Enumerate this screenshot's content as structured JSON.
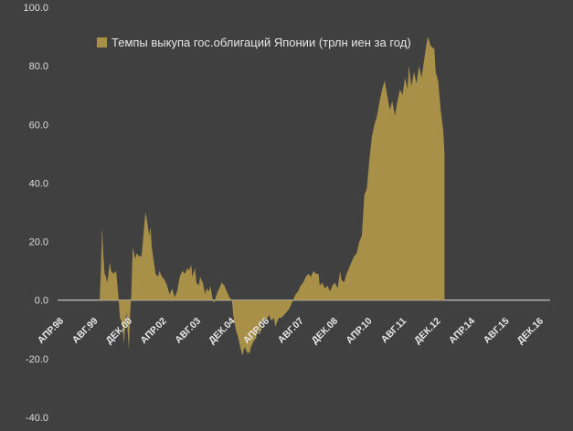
{
  "chart_data": {
    "type": "area",
    "series": [
      {
        "name": "Темпы выкупа гос.облигаций Японии (трлн иен за год)",
        "color": "#a89048"
      }
    ],
    "x_ticks": [
      "АПР.98",
      "АВГ.99",
      "ДЕК.00",
      "АПР.02",
      "АВГ.03",
      "ДЕК.04",
      "АПР.06",
      "АВГ.07",
      "ДЕК.08",
      "АПР.10",
      "АВГ.11",
      "ДЕК.12",
      "АПР.14",
      "АВГ.15",
      "ДЕК.16"
    ],
    "y_ticks": [
      "100.0",
      "80.0",
      "60.0",
      "40.0",
      "20.0",
      "0.0",
      "-20.0",
      "-40.0"
    ],
    "ylim": [
      -40,
      100
    ],
    "xlim": [
      1998.25,
      2017.6
    ],
    "grid": false,
    "legend_position": "top-left",
    "points": [
      [
        1999.8,
        0
      ],
      [
        1999.9,
        0
      ],
      [
        1999.95,
        10
      ],
      [
        2000.0,
        25
      ],
      [
        2000.05,
        15
      ],
      [
        2000.1,
        9
      ],
      [
        2000.15,
        8
      ],
      [
        2000.2,
        6
      ],
      [
        2000.25,
        9
      ],
      [
        2000.3,
        13
      ],
      [
        2000.35,
        10
      ],
      [
        2000.45,
        9
      ],
      [
        2000.55,
        10
      ],
      [
        2000.65,
        0
      ],
      [
        2000.7,
        -6
      ],
      [
        2000.8,
        -8
      ],
      [
        2000.85,
        -15
      ],
      [
        2000.95,
        -4
      ],
      [
        2001.0,
        -10
      ],
      [
        2001.05,
        -17
      ],
      [
        2001.1,
        -5
      ],
      [
        2001.15,
        3
      ],
      [
        2001.2,
        18
      ],
      [
        2001.3,
        14
      ],
      [
        2001.35,
        16
      ],
      [
        2001.45,
        15
      ],
      [
        2001.55,
        15
      ],
      [
        2001.65,
        25
      ],
      [
        2001.7,
        30
      ],
      [
        2001.75,
        28
      ],
      [
        2001.85,
        22
      ],
      [
        2001.9,
        25
      ],
      [
        2001.95,
        18
      ],
      [
        2002.05,
        12
      ],
      [
        2002.1,
        9
      ],
      [
        2002.2,
        8
      ],
      [
        2002.25,
        10
      ],
      [
        2002.35,
        8
      ],
      [
        2002.45,
        7
      ],
      [
        2002.55,
        5
      ],
      [
        2002.65,
        2
      ],
      [
        2002.75,
        4
      ],
      [
        2002.85,
        1
      ],
      [
        2002.95,
        3
      ],
      [
        2003.05,
        8
      ],
      [
        2003.15,
        10
      ],
      [
        2003.25,
        9
      ],
      [
        2003.35,
        11
      ],
      [
        2003.4,
        10
      ],
      [
        2003.5,
        12
      ],
      [
        2003.55,
        8
      ],
      [
        2003.65,
        11
      ],
      [
        2003.7,
        6
      ],
      [
        2003.8,
        5
      ],
      [
        2003.85,
        8
      ],
      [
        2003.95,
        6
      ],
      [
        2004.05,
        2
      ],
      [
        2004.1,
        4
      ],
      [
        2004.2,
        3
      ],
      [
        2004.25,
        5
      ],
      [
        2004.35,
        0
      ],
      [
        2004.4,
        -1
      ],
      [
        2004.5,
        2
      ],
      [
        2004.6,
        4
      ],
      [
        2004.7,
        6
      ],
      [
        2004.8,
        5
      ],
      [
        2004.9,
        3
      ],
      [
        2005.0,
        1
      ],
      [
        2005.1,
        0
      ],
      [
        2005.15,
        -5
      ],
      [
        2005.25,
        -10
      ],
      [
        2005.35,
        -13
      ],
      [
        2005.45,
        -17
      ],
      [
        2005.5,
        -19
      ],
      [
        2005.6,
        -16
      ],
      [
        2005.7,
        -18
      ],
      [
        2005.8,
        -18
      ],
      [
        2005.85,
        -16
      ],
      [
        2005.95,
        -14
      ],
      [
        2006.05,
        -13
      ],
      [
        2006.1,
        -10
      ],
      [
        2006.2,
        -12
      ],
      [
        2006.25,
        -8
      ],
      [
        2006.35,
        -6
      ],
      [
        2006.45,
        -7
      ],
      [
        2006.55,
        -5
      ],
      [
        2006.65,
        -7
      ],
      [
        2006.75,
        -6
      ],
      [
        2006.8,
        -9
      ],
      [
        2006.9,
        -7
      ],
      [
        2006.95,
        -6
      ],
      [
        2007.05,
        -6
      ],
      [
        2007.15,
        -5
      ],
      [
        2007.25,
        -4
      ],
      [
        2007.35,
        -3
      ],
      [
        2007.45,
        -1
      ],
      [
        2007.5,
        0
      ],
      [
        2007.6,
        2
      ],
      [
        2007.7,
        3
      ],
      [
        2007.8,
        5
      ],
      [
        2007.9,
        6
      ],
      [
        2008.0,
        8
      ],
      [
        2008.1,
        9
      ],
      [
        2008.2,
        8
      ],
      [
        2008.3,
        10
      ],
      [
        2008.4,
        9
      ],
      [
        2008.5,
        9
      ],
      [
        2008.55,
        5
      ],
      [
        2008.65,
        6
      ],
      [
        2008.75,
        4
      ],
      [
        2008.85,
        5
      ],
      [
        2008.95,
        3
      ],
      [
        2009.05,
        5
      ],
      [
        2009.15,
        6
      ],
      [
        2009.25,
        4
      ],
      [
        2009.35,
        10
      ],
      [
        2009.4,
        7
      ],
      [
        2009.5,
        6
      ],
      [
        2009.6,
        9
      ],
      [
        2009.7,
        11
      ],
      [
        2009.8,
        13
      ],
      [
        2009.9,
        15
      ],
      [
        2010.0,
        16
      ],
      [
        2010.1,
        20
      ],
      [
        2010.2,
        22
      ],
      [
        2010.3,
        36
      ],
      [
        2010.4,
        38
      ],
      [
        2010.5,
        48
      ],
      [
        2010.6,
        56
      ],
      [
        2010.7,
        60
      ],
      [
        2010.8,
        63
      ],
      [
        2010.9,
        68
      ],
      [
        2011.0,
        72
      ],
      [
        2011.1,
        75
      ],
      [
        2011.2,
        70
      ],
      [
        2011.3,
        65
      ],
      [
        2011.4,
        68
      ],
      [
        2011.5,
        63
      ],
      [
        2011.6,
        68
      ],
      [
        2011.7,
        72
      ],
      [
        2011.8,
        70
      ],
      [
        2011.9,
        76
      ],
      [
        2012.0,
        72
      ],
      [
        2012.05,
        80
      ],
      [
        2012.15,
        73
      ],
      [
        2012.25,
        78
      ],
      [
        2012.35,
        74
      ],
      [
        2012.45,
        80
      ],
      [
        2012.55,
        76
      ],
      [
        2012.65,
        82
      ],
      [
        2012.75,
        88
      ],
      [
        2012.8,
        90
      ],
      [
        2012.9,
        87
      ],
      [
        2013.0,
        86
      ],
      [
        2013.05,
        86
      ],
      [
        2013.1,
        78
      ],
      [
        2013.2,
        75
      ],
      [
        2013.3,
        65
      ],
      [
        2013.4,
        58
      ],
      [
        2013.45,
        50
      ]
    ]
  }
}
